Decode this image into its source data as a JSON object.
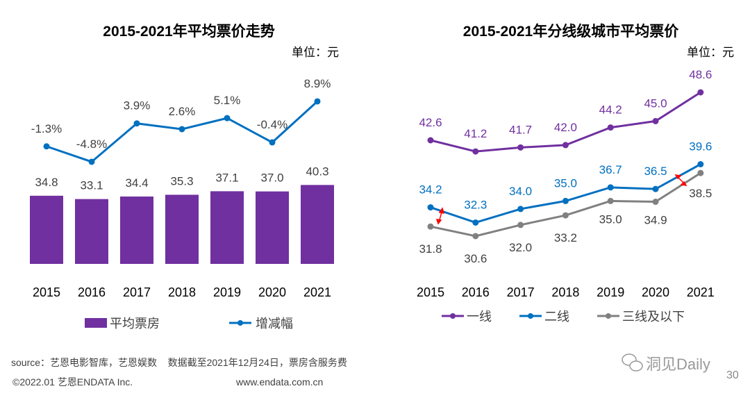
{
  "colors": {
    "purple": "#7030A0",
    "blue": "#0070C0",
    "gray": "#808080",
    "text": "#404040",
    "arrow": "#FF0000"
  },
  "chart_data": [
    {
      "type": "bar+line",
      "title": "2015-2021年平均票价走势",
      "unit": "单位：元",
      "categories": [
        "2015",
        "2016",
        "2017",
        "2018",
        "2019",
        "2020",
        "2021"
      ],
      "series": [
        {
          "name": "平均票房",
          "type": "bar",
          "values": [
            34.8,
            33.1,
            34.4,
            35.3,
            37.1,
            37.0,
            40.3
          ],
          "labels": [
            "34.8",
            "33.1",
            "34.4",
            "35.3",
            "37.1",
            "37.0",
            "40.3"
          ]
        },
        {
          "name": "增减幅",
          "type": "line",
          "values": [
            -1.3,
            -4.8,
            3.9,
            2.6,
            5.1,
            -0.4,
            8.9
          ],
          "labels": [
            "-1.3%",
            "-4.8%",
            "3.9%",
            "2.6%",
            "5.1%",
            "-0.4%",
            "8.9%"
          ]
        }
      ],
      "legend_position": "bottom"
    },
    {
      "type": "line",
      "title": "2015-2021年分线级城市平均票价",
      "unit": "单位：元",
      "categories": [
        "2015",
        "2016",
        "2017",
        "2018",
        "2019",
        "2020",
        "2021"
      ],
      "series": [
        {
          "name": "一线",
          "values": [
            42.6,
            41.2,
            41.7,
            42.0,
            44.2,
            45.0,
            48.6
          ],
          "labels": [
            "42.6",
            "41.2",
            "41.7",
            "42.0",
            "44.2",
            "45.0",
            "48.6"
          ]
        },
        {
          "name": "二线",
          "values": [
            34.2,
            32.3,
            34.0,
            35.0,
            36.7,
            36.5,
            39.6
          ],
          "labels": [
            "34.2",
            "32.3",
            "34.0",
            "35.0",
            "36.7",
            "36.5",
            "39.6"
          ]
        },
        {
          "name": "三线及以下",
          "values": [
            31.8,
            30.6,
            32.0,
            33.2,
            35.0,
            34.9,
            38.5
          ],
          "labels": [
            "31.8",
            "30.6",
            "32.0",
            "33.2",
            "35.0",
            "34.9",
            "38.5"
          ]
        }
      ],
      "legend_position": "bottom"
    }
  ],
  "footer": {
    "source": "source：艺恩电影智库，艺恩娱数    数据截至2021年12月24日，票房含服务费",
    "copyright": "©2022.01 艺恩ENDATA Inc.",
    "website": "www.endata.com.cn",
    "watermark": "洞见Daily",
    "page_number": "30"
  }
}
